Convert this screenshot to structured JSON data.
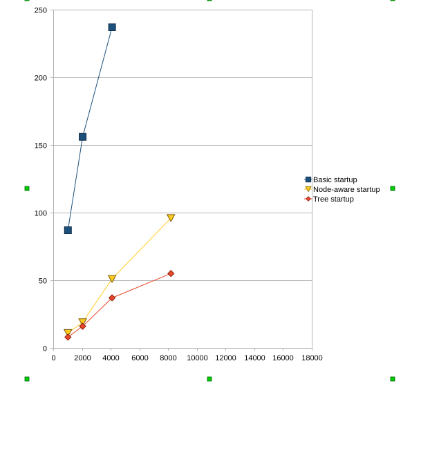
{
  "chart_data": {
    "type": "line",
    "title": "",
    "xlabel": "",
    "ylabel": "",
    "xlim": [
      0,
      18000
    ],
    "ylim": [
      0,
      250
    ],
    "xticks": [
      0,
      2000,
      4000,
      6000,
      8000,
      10000,
      12000,
      14000,
      16000,
      18000
    ],
    "yticks": [
      0,
      50,
      100,
      150,
      200,
      250
    ],
    "grid": "horizontal",
    "legend_position": "right",
    "series": [
      {
        "name": "Basic startup",
        "color": "#1b4f7c",
        "marker": "square",
        "x": [
          1024,
          2048,
          4096
        ],
        "y": [
          87,
          156,
          237
        ]
      },
      {
        "name": "Node-aware startup",
        "color": "#ffcc22",
        "marker": "triangle-down",
        "x": [
          1024,
          2048,
          4096,
          8192
        ],
        "y": [
          11,
          19,
          51,
          96
        ]
      },
      {
        "name": "Tree startup",
        "color": "#e8492a",
        "marker": "diamond",
        "x": [
          1024,
          2048,
          4096,
          8192
        ],
        "y": [
          8,
          16,
          37,
          55
        ]
      }
    ]
  },
  "colors": {
    "grid": "#b3b3b3",
    "axis": "#b3b3b3",
    "handle": "#00cc00"
  }
}
